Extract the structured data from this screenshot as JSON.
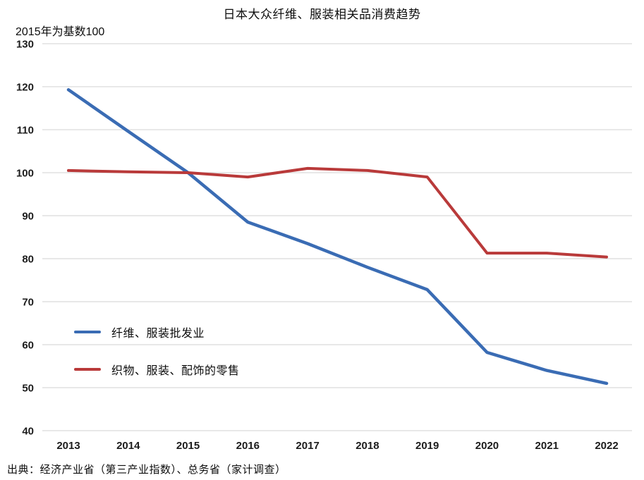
{
  "header": {
    "title": "日本大众纤维、服装相关品消费趋势",
    "axis_note": "2015年为基数100"
  },
  "footer": {
    "source_note": "出典：经济产业省（第三产业指数）、总务省（家计调查）"
  },
  "colors": {
    "wholesale_line": "#3A6CB4",
    "retail_line": "#B93A3A",
    "gridline": "#D9D9D9",
    "tick_text": "#1C1C1C"
  },
  "chart_data": {
    "type": "line",
    "title": "日本大众纤维、服装相关品消费趋势",
    "note": "2015年为基数100",
    "x": [
      2013,
      2014,
      2015,
      2016,
      2017,
      2018,
      2019,
      2020,
      2021,
      2022
    ],
    "series": [
      {
        "name": "纤维、服装批发业",
        "color": "#3A6CB4",
        "values": [
          119.3,
          109.6,
          100,
          88.5,
          83.5,
          78,
          72.8,
          58.2,
          54,
          51
        ]
      },
      {
        "name": "织物、服装、配饰的零售",
        "color": "#B93A3A",
        "values": [
          100.5,
          100.2,
          100,
          99,
          101,
          100.5,
          99,
          81.3,
          81.3,
          80.4
        ]
      }
    ],
    "ylim": [
      40,
      130
    ],
    "ytick_step": 10,
    "xlabel": "",
    "ylabel": "",
    "grid": true,
    "legend_position": "inside-left"
  }
}
